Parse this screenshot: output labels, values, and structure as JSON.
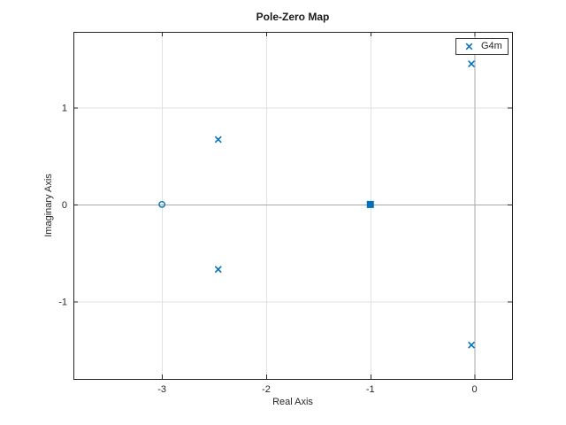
{
  "chart_data": {
    "type": "scatter",
    "subtype": "pole-zero-map",
    "title": "Pole-Zero Map",
    "xlabel": "Real Axis",
    "ylabel": "Imaginary Axis",
    "xlim": [
      -3.85,
      0.36
    ],
    "ylim": [
      -1.8,
      1.78
    ],
    "xticks": [
      -3,
      -2,
      -1,
      0
    ],
    "yticks": [
      -1,
      0,
      1
    ],
    "grid": true,
    "legend": {
      "position": "top-right",
      "entries": [
        {
          "label": "G4m",
          "marker": "x"
        }
      ]
    },
    "series": [
      {
        "name": "G4m poles",
        "marker": "x",
        "points": [
          [
            -2.46,
            0.67
          ],
          [
            -2.46,
            -0.67
          ],
          [
            -0.03,
            1.45
          ],
          [
            -0.03,
            -1.45
          ]
        ]
      },
      {
        "name": "G4m zero",
        "marker": "o",
        "points": [
          [
            -3,
            0
          ]
        ]
      },
      {
        "name": "G4m repeated pole-zero",
        "marker": "square",
        "points": [
          [
            -1,
            0
          ]
        ]
      }
    ],
    "colors": {
      "series": "#0072BD",
      "grid": "#E2E2E2",
      "zero_line": "#A9A9A9",
      "axis": "#262626",
      "text": "#262626"
    }
  }
}
